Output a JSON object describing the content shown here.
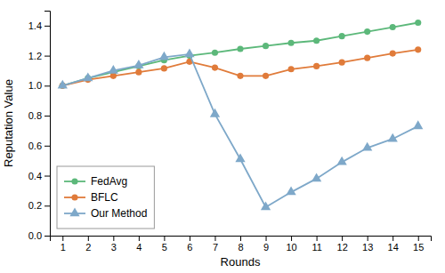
{
  "chart_data": {
    "type": "line",
    "x": [
      1,
      2,
      3,
      4,
      5,
      6,
      7,
      8,
      9,
      10,
      11,
      12,
      13,
      14,
      15
    ],
    "series": [
      {
        "name": "FedAvg",
        "color": "#5cb87a",
        "marker": "circle",
        "values": [
          1.0,
          1.05,
          1.09,
          1.13,
          1.17,
          1.2,
          1.22,
          1.245,
          1.265,
          1.285,
          1.3,
          1.33,
          1.36,
          1.39,
          1.42
        ]
      },
      {
        "name": "BFLC",
        "color": "#e07b3a",
        "marker": "circle",
        "values": [
          1.0,
          1.04,
          1.065,
          1.09,
          1.115,
          1.16,
          1.12,
          1.065,
          1.065,
          1.11,
          1.13,
          1.155,
          1.185,
          1.215,
          1.24
        ]
      },
      {
        "name": "Our Method",
        "color": "#7ea8c9",
        "marker": "triangle",
        "values": [
          1.0,
          1.05,
          1.1,
          1.135,
          1.19,
          1.21,
          0.81,
          0.51,
          0.19,
          0.29,
          0.38,
          0.49,
          0.585,
          0.645,
          0.73
        ]
      }
    ],
    "xlabel": "Rounds",
    "ylabel": "Reputation Value",
    "xlim": [
      0.5,
      15.5
    ],
    "ylim": [
      0,
      1.5
    ],
    "xticks": [
      1,
      2,
      3,
      4,
      5,
      6,
      7,
      8,
      9,
      10,
      11,
      12,
      13,
      14,
      15
    ],
    "yticks": [
      {
        "value": 0,
        "label": "0.0"
      },
      0.2,
      0.4,
      0.6,
      0.8,
      {
        "value": 1.0,
        "label": "1.0"
      },
      1.2,
      1.4
    ],
    "legend": "lower left",
    "grid": false
  }
}
